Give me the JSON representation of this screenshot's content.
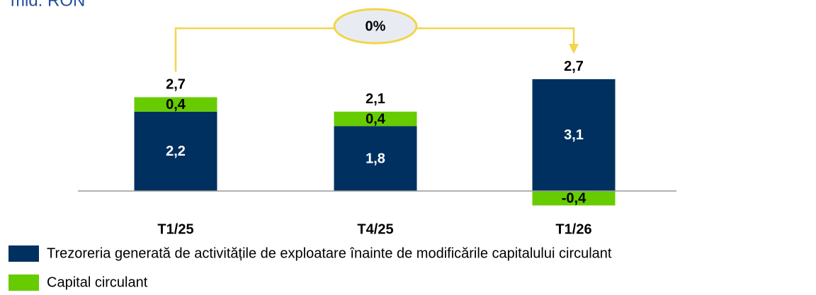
{
  "chart_data": {
    "type": "bar",
    "stacked": true,
    "subtitle": "mld. RON",
    "categories": [
      "T1/25",
      "T4/25",
      "T1/26"
    ],
    "series": [
      {
        "name": "Trezoreria generată de activitățile de exploatare înainte de modificările capitalului circulant",
        "color": "#00305f",
        "values": [
          2.2,
          1.8,
          3.1
        ],
        "value_labels": [
          "2,2",
          "1,8",
          "3,1"
        ]
      },
      {
        "name": "Capital circulant",
        "color": "#66cc00",
        "values": [
          0.4,
          0.4,
          -0.4
        ],
        "value_labels": [
          "0,4",
          "0,4",
          "-0,4"
        ]
      }
    ],
    "totals": {
      "values": [
        2.7,
        2.1,
        2.7
      ],
      "value_labels": [
        "2,7",
        "2,1",
        "2,7"
      ]
    },
    "annotation": "0%",
    "annotation_color": "#f2d54a"
  }
}
